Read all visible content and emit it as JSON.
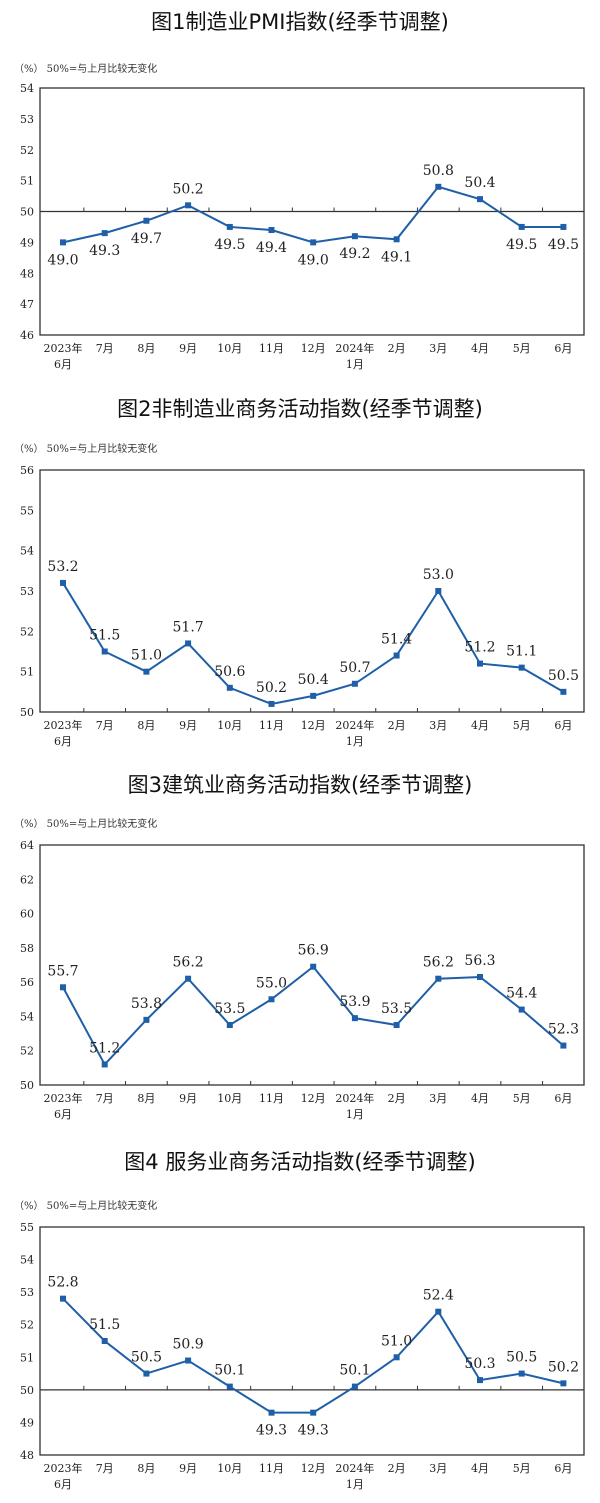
{
  "chart_data": [
    {
      "type": "line",
      "title": "图1制造业PMI指数(经季节调整)",
      "note": "（%）  50%=与上月比较无变化",
      "categories": [
        [
          "2023年",
          "6月"
        ],
        [
          "7月"
        ],
        [
          "8月"
        ],
        [
          "9月"
        ],
        [
          "10月"
        ],
        [
          "11月"
        ],
        [
          "12月"
        ],
        [
          "2024年",
          "1月"
        ],
        [
          "2月"
        ],
        [
          "3月"
        ],
        [
          "4月"
        ],
        [
          "5月"
        ],
        [
          "6月"
        ]
      ],
      "values": [
        49.0,
        49.3,
        49.7,
        50.2,
        49.5,
        49.4,
        49.0,
        49.2,
        49.1,
        50.8,
        50.4,
        49.5,
        49.5
      ],
      "ylim": [
        46,
        54
      ],
      "ystep": 1,
      "reference_line": 50,
      "color": "#1f5fa8"
    },
    {
      "type": "line",
      "title": "图2非制造业商务活动指数(经季节调整)",
      "note": "（%）  50%=与上月比较无变化",
      "categories": [
        [
          "2023年",
          "6月"
        ],
        [
          "7月"
        ],
        [
          "8月"
        ],
        [
          "9月"
        ],
        [
          "10月"
        ],
        [
          "11月"
        ],
        [
          "12月"
        ],
        [
          "2024年",
          "1月"
        ],
        [
          "2月"
        ],
        [
          "3月"
        ],
        [
          "4月"
        ],
        [
          "5月"
        ],
        [
          "6月"
        ]
      ],
      "values": [
        53.2,
        51.5,
        51.0,
        51.7,
        50.6,
        50.2,
        50.4,
        50.7,
        51.4,
        53.0,
        51.2,
        51.1,
        50.5
      ],
      "ylim": [
        50,
        56
      ],
      "ystep": 1,
      "reference_line": null,
      "color": "#1f5fa8"
    },
    {
      "type": "line",
      "title": "图3建筑业商务活动指数(经季节调整)",
      "note": "（%）  50%=与上月比较无变化",
      "categories": [
        [
          "2023年",
          "6月"
        ],
        [
          "7月"
        ],
        [
          "8月"
        ],
        [
          "9月"
        ],
        [
          "10月"
        ],
        [
          "11月"
        ],
        [
          "12月"
        ],
        [
          "2024年",
          "1月"
        ],
        [
          "2月"
        ],
        [
          "3月"
        ],
        [
          "4月"
        ],
        [
          "5月"
        ],
        [
          "6月"
        ]
      ],
      "values": [
        55.7,
        51.2,
        53.8,
        56.2,
        53.5,
        55.0,
        56.9,
        53.9,
        53.5,
        56.2,
        56.3,
        54.4,
        52.3
      ],
      "ylim": [
        50,
        64
      ],
      "ystep": 2,
      "reference_line": null,
      "color": "#1f5fa8"
    },
    {
      "type": "line",
      "title": "图4 服务业商务活动指数(经季节调整)",
      "note": "（%）  50%=与上月比较无变化",
      "categories": [
        [
          "2023年",
          "6月"
        ],
        [
          "7月"
        ],
        [
          "8月"
        ],
        [
          "9月"
        ],
        [
          "10月"
        ],
        [
          "11月"
        ],
        [
          "12月"
        ],
        [
          "2024年",
          "1月"
        ],
        [
          "2月"
        ],
        [
          "3月"
        ],
        [
          "4月"
        ],
        [
          "5月"
        ],
        [
          "6月"
        ]
      ],
      "values": [
        52.8,
        51.5,
        50.5,
        50.9,
        50.1,
        49.3,
        49.3,
        50.1,
        51.0,
        52.4,
        50.3,
        50.5,
        50.2
      ],
      "ylim": [
        48,
        55
      ],
      "ystep": 1,
      "reference_line": 50,
      "color": "#1f5fa8"
    }
  ]
}
